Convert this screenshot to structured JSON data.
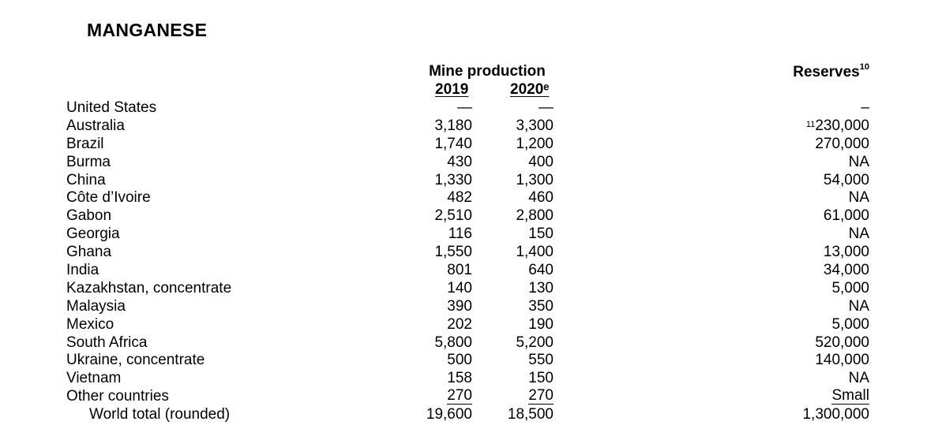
{
  "title": "MANGANESE",
  "headers": {
    "mine_production": "Mine production",
    "year_2019": "2019",
    "year_2020": "2020ᵉ",
    "reserves": "Reserves",
    "reserves_note": "10"
  },
  "rows": [
    {
      "country": "United States",
      "y2019": "—",
      "y2020": "—",
      "reserves_note": "",
      "reserves": "–"
    },
    {
      "country": "Australia",
      "y2019": "3,180",
      "y2020": "3,300",
      "reserves_note": "11",
      "reserves": "230,000"
    },
    {
      "country": "Brazil",
      "y2019": "1,740",
      "y2020": "1,200",
      "reserves_note": "",
      "reserves": "270,000"
    },
    {
      "country": "Burma",
      "y2019": "430",
      "y2020": "400",
      "reserves_note": "",
      "reserves": "NA"
    },
    {
      "country": "China",
      "y2019": "1,330",
      "y2020": "1,300",
      "reserves_note": "",
      "reserves": "54,000"
    },
    {
      "country": "Côte d’Ivoire",
      "y2019": "482",
      "y2020": "460",
      "reserves_note": "",
      "reserves": "NA"
    },
    {
      "country": "Gabon",
      "y2019": "2,510",
      "y2020": "2,800",
      "reserves_note": "",
      "reserves": "61,000"
    },
    {
      "country": "Georgia",
      "y2019": "116",
      "y2020": "150",
      "reserves_note": "",
      "reserves": "NA"
    },
    {
      "country": "Ghana",
      "y2019": "1,550",
      "y2020": "1,400",
      "reserves_note": "",
      "reserves": "13,000"
    },
    {
      "country": "India",
      "y2019": "801",
      "y2020": "640",
      "reserves_note": "",
      "reserves": "34,000"
    },
    {
      "country": "Kazakhstan, concentrate",
      "y2019": "140",
      "y2020": "130",
      "reserves_note": "",
      "reserves": "5,000"
    },
    {
      "country": "Malaysia",
      "y2019": "390",
      "y2020": "350",
      "reserves_note": "",
      "reserves": "NA"
    },
    {
      "country": "Mexico",
      "y2019": "202",
      "y2020": "190",
      "reserves_note": "",
      "reserves": "5,000"
    },
    {
      "country": "South Africa",
      "y2019": "5,800",
      "y2020": "5,200",
      "reserves_note": "",
      "reserves": "520,000"
    },
    {
      "country": "Ukraine, concentrate",
      "y2019": "500",
      "y2020": "550",
      "reserves_note": "",
      "reserves": "140,000"
    },
    {
      "country": "Vietnam",
      "y2019": "158",
      "y2020": "150",
      "reserves_note": "",
      "reserves": "NA"
    },
    {
      "country": "Other countries",
      "y2019": "270",
      "y2020": "270",
      "reserves_note": "",
      "reserves": "Small"
    },
    {
      "country": "World total (rounded)",
      "y2019": "19,600",
      "y2020": "18,500",
      "reserves_note": "",
      "reserves": "1,300,000"
    }
  ]
}
